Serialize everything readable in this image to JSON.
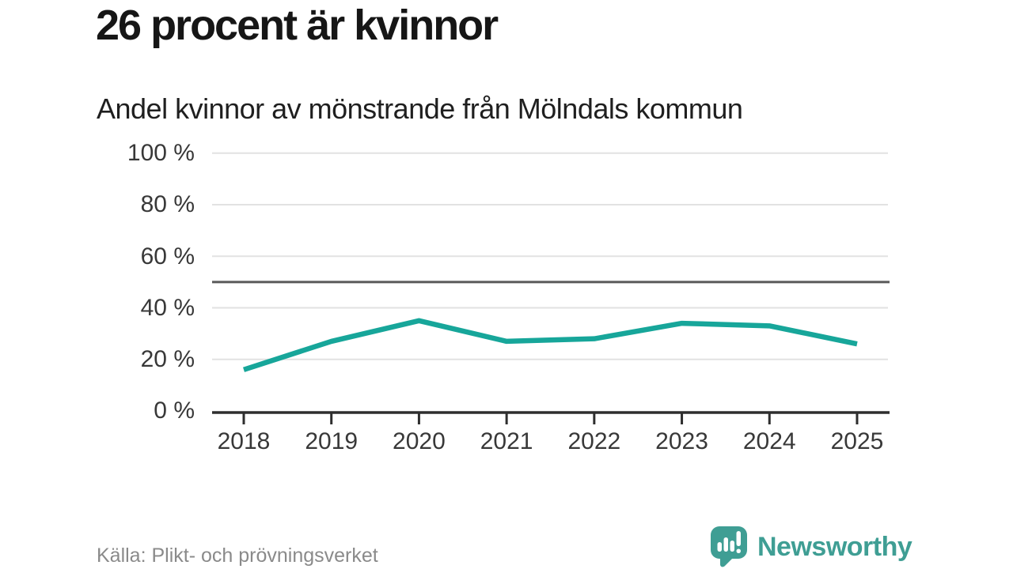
{
  "header": {
    "title": "26 procent är kvinnor",
    "subtitle": "Andel kvinnor av mönstrande från Mölndals kommun"
  },
  "chart_data": {
    "type": "line",
    "title": "26 procent är kvinnor",
    "subtitle": "Andel kvinnor av mönstrande från Mölndals kommun",
    "x": [
      "2018",
      "2019",
      "2020",
      "2021",
      "2022",
      "2023",
      "2024",
      "2025"
    ],
    "series": [
      {
        "name": "Andel kvinnor av mönstrande",
        "values": [
          16,
          27,
          35,
          27,
          28,
          34,
          33,
          26
        ]
      }
    ],
    "unit": "%",
    "ylim": [
      0,
      100
    ],
    "ytick_step": 20,
    "ytick_labels_top_down": [
      "100 %",
      "80 %",
      "60 %",
      "40 %",
      "20 %",
      "0 %"
    ],
    "reference_line_value": 50,
    "grid": "horizontal",
    "legend": "none",
    "colors": {
      "line": "#17a69a",
      "grid": "#e2e2e2",
      "reference_line": "#595959",
      "axis": "#2e2e2e"
    }
  },
  "footer": {
    "source": "Källa: Plikt- och prövningsverket",
    "brand": {
      "name": "Newsworthy",
      "color": "#3f9e94"
    }
  }
}
